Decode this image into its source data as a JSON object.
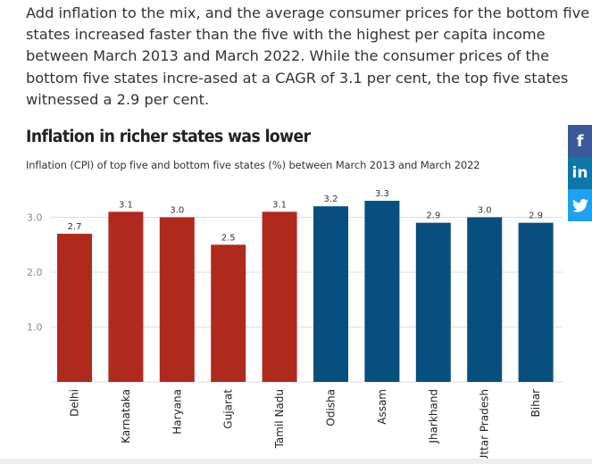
{
  "article": {
    "paragraph": "Add inflation to the mix, and the average consumer prices for the bottom five states increased faster than the five with the highest per capita income between March 2013 and March 2022. While the consumer prices of the bottom five states incre-ased at a CAGR of 3.1 per cent, the top five states witnessed a 2.9 per cent."
  },
  "social": {
    "facebook_label": "f",
    "linkedin_label": "in",
    "twitter_icon": "twitter-bird-icon"
  },
  "colors": {
    "top_five": "#b0291d",
    "bottom_five": "#064f7f",
    "gridline": "#dddddd",
    "axis_text": "#888888"
  },
  "chart_data": {
    "type": "bar",
    "title": "Inflation in richer states was lower",
    "subtitle": "Inflation (CPI) of top five and bottom five states (%) between March 2013 and March 2022",
    "categories": [
      "Delhi",
      "Karnataka",
      "Haryana",
      "Gujarat",
      "Tamil Nadu",
      "Odisha",
      "Assam",
      "Jharkhand",
      "Uttar Pradesh",
      "Bihar"
    ],
    "values": [
      2.7,
      3.1,
      3.0,
      2.5,
      3.1,
      3.2,
      3.3,
      2.9,
      3.0,
      2.9
    ],
    "value_labels": [
      "2.7",
      "3.1",
      "3.0",
      "2.5",
      "3.1",
      "3.2",
      "3.3",
      "2.9",
      "3.0",
      "2.9"
    ],
    "bar_colors": [
      "#b0291d",
      "#b0291d",
      "#b0291d",
      "#b0291d",
      "#b0291d",
      "#064f7f",
      "#064f7f",
      "#064f7f",
      "#064f7f",
      "#064f7f"
    ],
    "yticks": [
      1.0,
      2.0,
      3.0
    ],
    "ytick_labels": [
      "1.0",
      "2.0",
      "3.0"
    ],
    "ylim": [
      0,
      3.5
    ],
    "grid": true,
    "xlabel": "",
    "ylabel": ""
  }
}
